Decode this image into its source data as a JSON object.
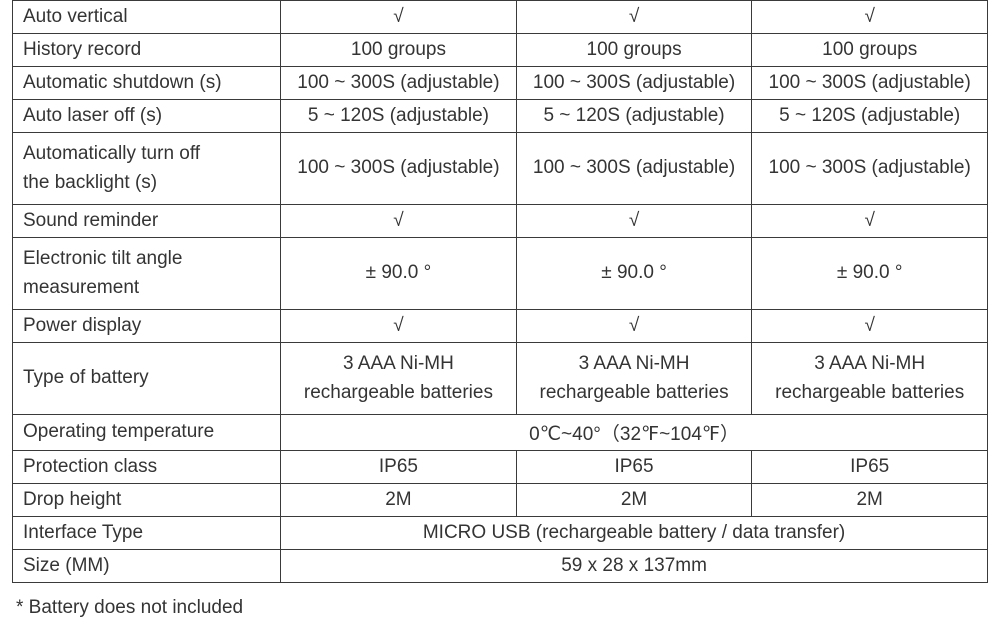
{
  "table": {
    "label_col_width": "27.5%",
    "data_col_width": "24.166%",
    "border_color": "#3a3a3a",
    "text_color": "#343434",
    "font_size": 19,
    "rows": [
      {
        "kind": "3val",
        "label": "Auto vertical",
        "v1": "√",
        "v2": "√",
        "v3": "√"
      },
      {
        "kind": "3val",
        "label": "History record",
        "v1": "100 groups",
        "v2": "100 groups",
        "v3": "100 groups"
      },
      {
        "kind": "3val",
        "label": "Automatic shutdown (s)",
        "v1": "100 ~ 300S (adjustable)",
        "v2": "100 ~ 300S (adjustable)",
        "v3": "100 ~ 300S (adjustable)"
      },
      {
        "kind": "3val",
        "label": "Auto laser off (s)",
        "v1": "5 ~ 120S (adjustable)",
        "v2": "5 ~ 120S (adjustable)",
        "v3": "5 ~ 120S (adjustable)"
      },
      {
        "kind": "3val_2line",
        "label_line1": "Automatically turn off",
        "label_line2": "the backlight (s)",
        "v1": "100 ~ 300S (adjustable)",
        "v2": "100 ~ 300S (adjustable)",
        "v3": "100 ~ 300S (adjustable)"
      },
      {
        "kind": "3val",
        "label": "Sound reminder",
        "v1": "√",
        "v2": "√",
        "v3": "√"
      },
      {
        "kind": "3val_2line",
        "label_line1": "Electronic tilt angle",
        "label_line2": "measurement",
        "v1": "± 90.0 °",
        "v2": "± 90.0 °",
        "v3": "± 90.0 °"
      },
      {
        "kind": "3val",
        "label": "Power display",
        "v1": "√",
        "v2": "√",
        "v3": "√"
      },
      {
        "kind": "3val_2lineval",
        "label": "Type of battery",
        "v1_l1": "3 AAA Ni-MH",
        "v1_l2": "rechargeable batteries",
        "v2_l1": "3 AAA Ni-MH",
        "v2_l2": "rechargeable batteries",
        "v3_l1": "3 AAA Ni-MH",
        "v3_l2": "rechargeable batteries"
      },
      {
        "kind": "merged",
        "label": "Operating temperature",
        "value": "0℃~40°（32℉~104℉）"
      },
      {
        "kind": "3val",
        "label": "Protection class",
        "v1": "IP65",
        "v2": "IP65",
        "v3": "IP65"
      },
      {
        "kind": "3val",
        "label": "Drop height",
        "v1": "2M",
        "v2": "2M",
        "v3": "2M"
      },
      {
        "kind": "merged",
        "label": "Interface Type",
        "value": "MICRO USB (rechargeable battery / data transfer)"
      },
      {
        "kind": "merged",
        "label": "Size (MM)",
        "value": "59 x 28 x 137mm"
      }
    ]
  },
  "footnote": "* Battery does not included"
}
